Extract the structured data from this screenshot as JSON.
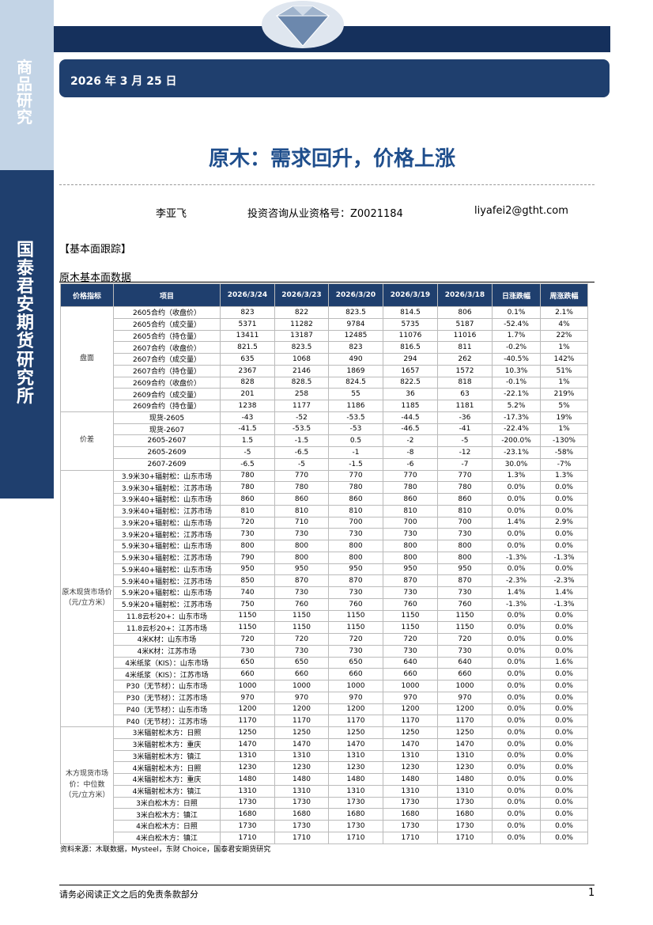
{
  "sidebar": {
    "section": "商品研究",
    "org": "国泰君安期货研究所"
  },
  "header": {
    "date": "2026 年 3 月 25 日"
  },
  "title": "原木：需求回升，价格上涨",
  "author": {
    "name": "李亚飞",
    "license": "投资咨询从业资格号：Z0021184",
    "email": "liyafei2@gtht.com"
  },
  "section_label": "【基本面跟踪】",
  "table": {
    "title": "原木基本面数据",
    "headers": [
      "价格指标",
      "项目",
      "2026/3/24",
      "2026/3/23",
      "2026/3/20",
      "2026/3/19",
      "2026/3/18",
      "日涨跌幅",
      "周涨跌幅"
    ],
    "groups": [
      {
        "name": "盘面",
        "rows": [
          [
            "2605合约（收盘价）",
            "823",
            "822",
            "823.5",
            "814.5",
            "806",
            "0.1%",
            "2.1%"
          ],
          [
            "2605合约（成交量）",
            "5371",
            "11282",
            "9784",
            "5735",
            "5187",
            "-52.4%",
            "4%"
          ],
          [
            "2605合约（持仓量）",
            "13411",
            "13187",
            "12485",
            "11076",
            "11016",
            "1.7%",
            "22%"
          ],
          [
            "2607合约（收盘价）",
            "821.5",
            "823.5",
            "823",
            "816.5",
            "811",
            "-0.2%",
            "1%"
          ],
          [
            "2607合约（成交量）",
            "635",
            "1068",
            "490",
            "294",
            "262",
            "-40.5%",
            "142%"
          ],
          [
            "2607合约（持仓量）",
            "2367",
            "2146",
            "1869",
            "1657",
            "1572",
            "10.3%",
            "51%"
          ],
          [
            "2609合约（收盘价）",
            "828",
            "828.5",
            "824.5",
            "822.5",
            "818",
            "-0.1%",
            "1%"
          ],
          [
            "2609合约（成交量）",
            "201",
            "258",
            "55",
            "36",
            "63",
            "-22.1%",
            "219%"
          ],
          [
            "2609合约（持仓量）",
            "1238",
            "1177",
            "1186",
            "1185",
            "1181",
            "5.2%",
            "5%"
          ]
        ]
      },
      {
        "name": "价差",
        "rows": [
          [
            "现货-2605",
            "-43",
            "-52",
            "-53.5",
            "-44.5",
            "-36",
            "-17.3%",
            "19%"
          ],
          [
            "现货-2607",
            "-41.5",
            "-53.5",
            "-53",
            "-46.5",
            "-41",
            "-22.4%",
            "1%"
          ],
          [
            "2605-2607",
            "1.5",
            "-1.5",
            "0.5",
            "-2",
            "-5",
            "-200.0%",
            "-130%"
          ],
          [
            "2605-2609",
            "-5",
            "-6.5",
            "-1",
            "-8",
            "-12",
            "-23.1%",
            "-58%"
          ],
          [
            "2607-2609",
            "-6.5",
            "-5",
            "-1.5",
            "-6",
            "-7",
            "30.0%",
            "-7%"
          ]
        ]
      },
      {
        "name": "原木现货市场价（元/立方米）",
        "rows": [
          [
            "3.9米30+辐射松：山东市场",
            "780",
            "770",
            "770",
            "770",
            "770",
            "1.3%",
            "1.3%"
          ],
          [
            "3.9米30+辐射松：江苏市场",
            "780",
            "780",
            "780",
            "780",
            "780",
            "0.0%",
            "0.0%"
          ],
          [
            "3.9米40+辐射松：山东市场",
            "860",
            "860",
            "860",
            "860",
            "860",
            "0.0%",
            "0.0%"
          ],
          [
            "3.9米40+辐射松：江苏市场",
            "810",
            "810",
            "810",
            "810",
            "810",
            "0.0%",
            "0.0%"
          ],
          [
            "3.9米20+辐射松：山东市场",
            "720",
            "710",
            "700",
            "700",
            "700",
            "1.4%",
            "2.9%"
          ],
          [
            "3.9米20+辐射松：江苏市场",
            "730",
            "730",
            "730",
            "730",
            "730",
            "0.0%",
            "0.0%"
          ],
          [
            "5.9米30+辐射松：山东市场",
            "800",
            "800",
            "800",
            "800",
            "800",
            "0.0%",
            "0.0%"
          ],
          [
            "5.9米30+辐射松：江苏市场",
            "790",
            "800",
            "800",
            "800",
            "800",
            "-1.3%",
            "-1.3%"
          ],
          [
            "5.9米40+辐射松：山东市场",
            "950",
            "950",
            "950",
            "950",
            "950",
            "0.0%",
            "0.0%"
          ],
          [
            "5.9米40+辐射松：江苏市场",
            "850",
            "870",
            "870",
            "870",
            "870",
            "-2.3%",
            "-2.3%"
          ],
          [
            "5.9米20+辐射松：山东市场",
            "740",
            "730",
            "730",
            "730",
            "730",
            "1.4%",
            "1.4%"
          ],
          [
            "5.9米20+辐射松：江苏市场",
            "750",
            "760",
            "760",
            "760",
            "760",
            "-1.3%",
            "-1.3%"
          ],
          [
            "11.8云杉20+：山东市场",
            "1150",
            "1150",
            "1150",
            "1150",
            "1150",
            "0.0%",
            "0.0%"
          ],
          [
            "11.8云杉20+：江苏市场",
            "1150",
            "1150",
            "1150",
            "1150",
            "1150",
            "0.0%",
            "0.0%"
          ],
          [
            "4米K材：山东市场",
            "720",
            "720",
            "720",
            "720",
            "720",
            "0.0%",
            "0.0%"
          ],
          [
            "4米K材：江苏市场",
            "730",
            "730",
            "730",
            "730",
            "730",
            "0.0%",
            "0.0%"
          ],
          [
            "4米纸浆（KIS）：山东市场",
            "650",
            "650",
            "650",
            "640",
            "640",
            "0.0%",
            "1.6%"
          ],
          [
            "4米纸浆（KIS）：江苏市场",
            "660",
            "660",
            "660",
            "660",
            "660",
            "0.0%",
            "0.0%"
          ],
          [
            "P30（无节材）：山东市场",
            "1000",
            "1000",
            "1000",
            "1000",
            "1000",
            "0.0%",
            "0.0%"
          ],
          [
            "P30（无节材）：江苏市场",
            "970",
            "970",
            "970",
            "970",
            "970",
            "0.0%",
            "0.0%"
          ],
          [
            "P40（无节材）：山东市场",
            "1200",
            "1200",
            "1200",
            "1200",
            "1200",
            "0.0%",
            "0.0%"
          ],
          [
            "P40（无节材）：江苏市场",
            "1170",
            "1170",
            "1170",
            "1170",
            "1170",
            "0.0%",
            "0.0%"
          ]
        ]
      },
      {
        "name": "木方现货市场价：中位数（元/立方米）",
        "rows": [
          [
            "3米辐射松木方：日照",
            "1250",
            "1250",
            "1250",
            "1250",
            "1250",
            "0.0%",
            "0.0%"
          ],
          [
            "3米辐射松木方：重庆",
            "1470",
            "1470",
            "1470",
            "1470",
            "1470",
            "0.0%",
            "0.0%"
          ],
          [
            "3米辐射松木方：镇江",
            "1310",
            "1310",
            "1310",
            "1310",
            "1310",
            "0.0%",
            "0.0%"
          ],
          [
            "4米辐射松木方：日照",
            "1230",
            "1230",
            "1230",
            "1230",
            "1230",
            "0.0%",
            "0.0%"
          ],
          [
            "4米辐射松木方：重庆",
            "1480",
            "1480",
            "1480",
            "1480",
            "1480",
            "0.0%",
            "0.0%"
          ],
          [
            "4米辐射松木方：镇江",
            "1310",
            "1310",
            "1310",
            "1310",
            "1310",
            "0.0%",
            "0.0%"
          ],
          [
            "3米白松木方：日照",
            "1730",
            "1730",
            "1730",
            "1730",
            "1730",
            "0.0%",
            "0.0%"
          ],
          [
            "3米白松木方：镇江",
            "1680",
            "1680",
            "1680",
            "1680",
            "1680",
            "0.0%",
            "0.0%"
          ],
          [
            "4米白松木方：日照",
            "1730",
            "1730",
            "1730",
            "1730",
            "1730",
            "0.0%",
            "0.0%"
          ],
          [
            "4米白松木方：镇江",
            "1710",
            "1710",
            "1710",
            "1710",
            "1710",
            "0.0%",
            "0.0%"
          ]
        ]
      }
    ],
    "source": "资料来源：木联数据，Mysteel，东财 Choice，国泰君安期货研究"
  },
  "footer": {
    "disclaimer": "请务必阅读正文之后的免责条款部分",
    "page": "1"
  }
}
